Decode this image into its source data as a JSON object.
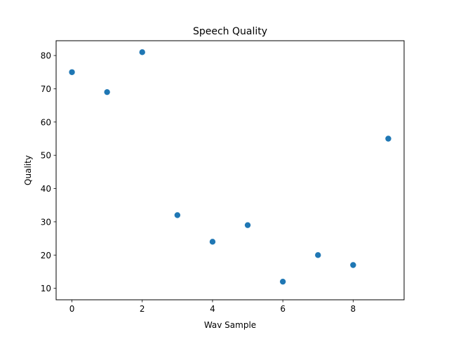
{
  "chart_data": {
    "type": "scatter",
    "title": "Speech Quality",
    "xlabel": "Wav Sample",
    "ylabel": "Quality",
    "xlim": [
      -0.45,
      9.45
    ],
    "ylim": [
      6.55,
      84.45
    ],
    "xticks": [
      0,
      2,
      4,
      6,
      8
    ],
    "yticks": [
      10,
      20,
      30,
      40,
      50,
      60,
      70,
      80
    ],
    "grid": false,
    "legend": "none",
    "marker_color": "#1f77b4",
    "series": [
      {
        "x": [
          0,
          1,
          2,
          3,
          4,
          5,
          6,
          7,
          8,
          9
        ],
        "y": [
          75,
          69,
          81,
          32,
          24,
          29,
          12,
          20,
          17,
          55
        ]
      }
    ]
  }
}
